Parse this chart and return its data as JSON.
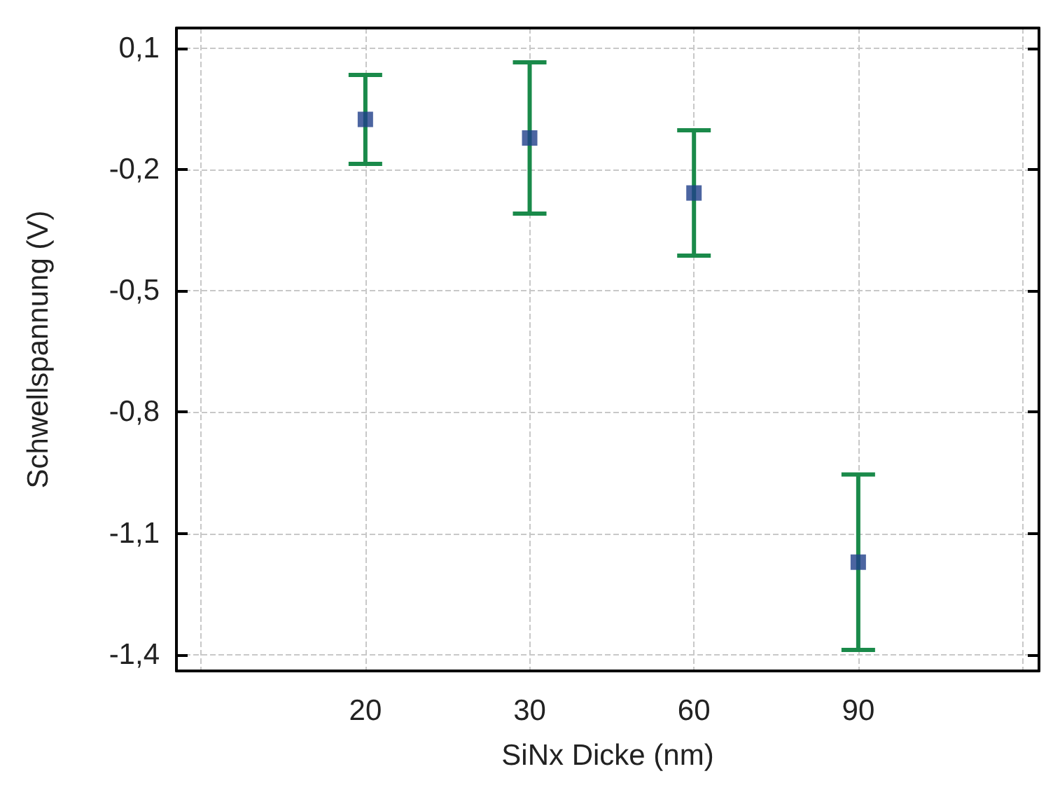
{
  "chart_data": {
    "type": "scatter",
    "xlabel": "SiNx Dicke (nm)",
    "ylabel": "Schwellspannung (V)",
    "categories": [
      "20",
      "30",
      "60",
      "90"
    ],
    "series": [
      {
        "color": "#1f3f8a",
        "values": [
          -0.076,
          -0.122,
          -0.258,
          -1.171
        ],
        "errors": [
          0.11,
          0.187,
          0.155,
          0.217
        ]
      }
    ],
    "ylim": [
      -1.44,
      0.15
    ],
    "yticks": [
      {
        "value": 0.1,
        "label": "0,1"
      },
      {
        "value": -0.2,
        "label": "-0,2"
      },
      {
        "value": -0.5,
        "label": "-0,5"
      },
      {
        "value": -0.8,
        "label": "-0,8"
      },
      {
        "value": -1.1,
        "label": "-1,1"
      },
      {
        "value": -1.4,
        "label": "-1,4"
      }
    ],
    "grid": true,
    "marker": "square",
    "legend": false
  }
}
